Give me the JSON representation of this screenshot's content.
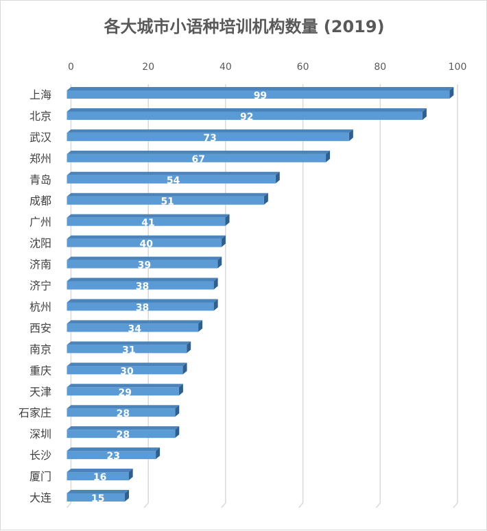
{
  "chart_data": {
    "type": "bar",
    "orientation": "horizontal",
    "style": "3d",
    "title": "各大城市小语种培训机构数量 (2019)",
    "categories": [
      "上海",
      "北京",
      "武汉",
      "郑州",
      "青岛",
      "成都",
      "广州",
      "沈阳",
      "济南",
      "济宁",
      "杭州",
      "西安",
      "南京",
      "重庆",
      "天津",
      "石家庄",
      "深圳",
      "长沙",
      "厦门",
      "大连"
    ],
    "values": [
      99,
      92,
      73,
      67,
      54,
      51,
      41,
      40,
      39,
      38,
      38,
      34,
      31,
      30,
      29,
      28,
      28,
      23,
      16,
      15
    ],
    "xlim": [
      0,
      100
    ],
    "xticks": [
      0,
      20,
      40,
      60,
      80,
      100
    ],
    "x_axis_position": "top",
    "data_labels": true,
    "grid": true,
    "legend": "none",
    "colors": {
      "bar": "#5b9bd5",
      "bar_top": "#4a84bb",
      "bar_side": "#2e5f8f",
      "grid": "#d9d9d9",
      "text": "#595959"
    }
  }
}
